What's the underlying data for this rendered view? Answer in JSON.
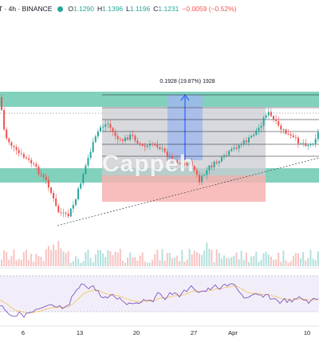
{
  "header": {
    "symbol": "T · 4h · BINANCE",
    "open_label": "O",
    "open": "1.1290",
    "high_label": "H",
    "high": "1.1396",
    "low_label": "L",
    "low": "1.1196",
    "close_label": "C",
    "close": "1.1231",
    "change": "−0.0059 (−0.52%)"
  },
  "measure": {
    "label": "0.1928 (19.87%) 1928"
  },
  "watermark": "Cappeh",
  "x_axis": {
    "labels": [
      "6",
      "13",
      "20",
      "27",
      "Apr",
      "10"
    ]
  },
  "colors": {
    "up": "#26a69a",
    "down": "#ef5350",
    "zone": "#6cc9b0",
    "measure_fill": "#9fb7ee",
    "measure_arrow": "#2962ff",
    "target_box": "#c9ccd1",
    "stop_box": "#f7b2b2",
    "rsi_line": "#7e57c2",
    "rsi_ma": "#f3c769"
  }
}
